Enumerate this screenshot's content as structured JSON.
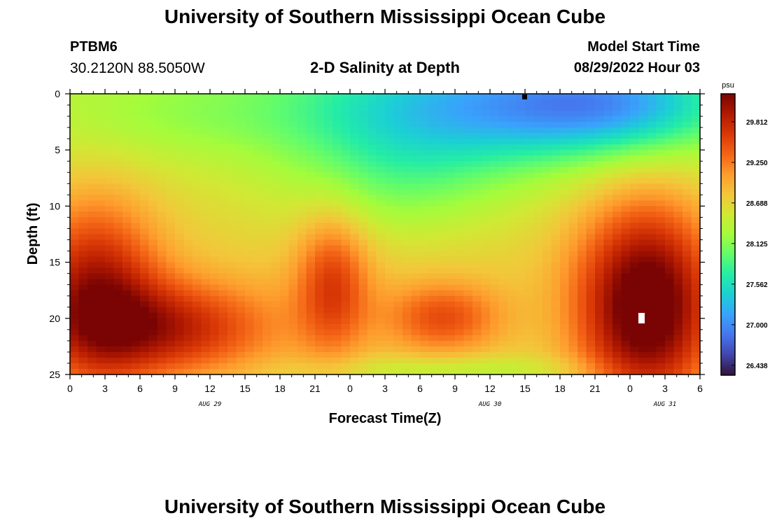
{
  "header": {
    "title": "University of Southern Mississippi Ocean Cube",
    "station_id": "PTBM6",
    "coordinates": "30.2120N  88.5050W",
    "plot_title": "2-D Salinity at Depth",
    "model_start_label": "Model Start Time",
    "model_start_value": "08/29/2022 Hour 03"
  },
  "footer": {
    "title": "University of Southern Mississippi Ocean Cube"
  },
  "chart_data": {
    "type": "heatmap",
    "title": "2-D Salinity at Depth",
    "xlabel": "Forecast Time(Z)",
    "ylabel": "Depth (ft)",
    "x_ticks": [
      "0",
      "3",
      "6",
      "9",
      "12",
      "15",
      "18",
      "21",
      "0",
      "3",
      "6",
      "9",
      "12",
      "15",
      "18",
      "21",
      "0",
      "3",
      "6"
    ],
    "date_labels": [
      {
        "label": "AUG 29",
        "at_tick": 4
      },
      {
        "label": "AUG 30",
        "at_tick": 12
      },
      {
        "label": "AUG 31",
        "at_tick": 17
      }
    ],
    "y_ticks": [
      "0",
      "5",
      "10",
      "15",
      "20",
      "25"
    ],
    "ylim": [
      0,
      25
    ],
    "x_range_hours": [
      0,
      54
    ],
    "colorbar": {
      "unit": "psu",
      "ticks": [
        "29.812",
        "29.250",
        "28.688",
        "28.125",
        "27.562",
        "27.000",
        "26.438"
      ],
      "vmin": 26.3,
      "vmax": 30.2,
      "colors": [
        "#30123b",
        "#4145ab",
        "#4675ed",
        "#39a2fc",
        "#1bcfd4",
        "#24eca6",
        "#61fc6c",
        "#a4fc3b",
        "#d1e834",
        "#f3c63a",
        "#fe9b2d",
        "#f36315",
        "#d93806",
        "#b11901",
        "#7a0403"
      ]
    },
    "salinity_description": "Salinity field (psu) vs forecast hour 0-54 and depth 0-25 ft; fresher water near surface around hours 24-54, saltier water at depth with maxima near hours 3-12 and 45-52."
  }
}
